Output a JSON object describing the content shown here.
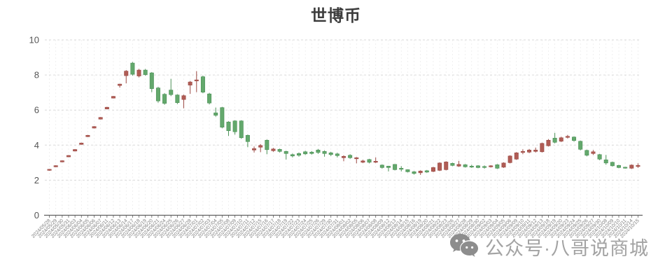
{
  "title": "世博币",
  "watermark": {
    "icon": "wechat-icon",
    "text": "公众号·八哥说商城"
  },
  "chart_data": {
    "type": "candlestick",
    "title": "世博币",
    "xlabel": "",
    "ylabel": "",
    "ylim": [
      0,
      10
    ],
    "yticks": [
      0,
      2,
      4,
      6,
      8,
      10
    ],
    "grid": true,
    "legend": false,
    "x_tick_label_rotation": -45,
    "colors": {
      "up": "#b05c55",
      "up_stroke": "#9c4b45",
      "down": "#63a86c",
      "down_stroke": "#4c9157",
      "axis": "#616161",
      "gridline": "#dadada",
      "tick_label": "#7d7d7d"
    },
    "dates": [
      "2024/05/28",
      "2024/05/29",
      "2024/05/30",
      "2024/05/31",
      "2024/06/03",
      "2024/06/04",
      "2024/06/05",
      "2024/06/06",
      "2024/06/07",
      "2024/06/11",
      "2024/06/12",
      "2024/06/13",
      "2024/06/14",
      "2024/06/17",
      "2024/06/18",
      "2024/06/19",
      "2024/06/20",
      "2024/06/21",
      "2024/06/24",
      "2024/06/25",
      "2024/06/26",
      "2024/06/27",
      "2024/06/28",
      "2024/07/01",
      "2024/07/02",
      "2024/07/03",
      "2024/07/04",
      "2024/07/05",
      "2024/07/08",
      "2024/07/09",
      "2024/07/10",
      "2024/07/11",
      "2024/07/12",
      "2024/07/15",
      "2024/07/16",
      "2024/07/17",
      "2024/07/18",
      "2024/07/19",
      "2024/07/22",
      "2024/07/23",
      "2024/07/24",
      "2024/07/25",
      "2024/07/26",
      "2024/07/29",
      "2024/07/30",
      "2024/07/31",
      "2024/08/01",
      "2024/08/02",
      "2024/08/05",
      "2024/08/06",
      "2024/08/07",
      "2024/08/08",
      "2024/08/09",
      "2024/08/12",
      "2024/08/13",
      "2024/08/14",
      "2024/08/15",
      "2024/08/16",
      "2024/08/19",
      "2024/08/20",
      "2024/08/21",
      "2024/08/22",
      "2024/08/23",
      "2024/08/26",
      "2024/08/27",
      "2024/08/28",
      "2024/08/29",
      "2024/08/30",
      "2024/09/02",
      "2024/09/03",
      "2024/09/04",
      "2024/09/05",
      "2024/09/06",
      "2024/09/09",
      "2024/09/10",
      "2024/09/11",
      "2024/09/12",
      "2024/09/13",
      "2024/09/18",
      "2024/09/19",
      "2024/09/20",
      "2024/09/23",
      "2024/09/24",
      "2024/09/25",
      "2024/09/26",
      "2024/09/27",
      "2024/09/30",
      "2024/10/08",
      "2024/10/09",
      "2024/10/10",
      "2024/10/11",
      "2024/10/14",
      "2024/10/15"
    ],
    "candles_format": [
      "open",
      "close",
      "low",
      "high"
    ],
    "candles": [
      [
        2.56,
        2.62,
        2.54,
        2.64
      ],
      [
        2.76,
        2.83,
        2.74,
        2.85
      ],
      [
        3.04,
        3.11,
        3.02,
        3.13
      ],
      [
        3.33,
        3.41,
        3.31,
        3.43
      ],
      [
        3.66,
        3.75,
        3.64,
        3.77
      ],
      [
        4.04,
        4.12,
        4.02,
        4.14
      ],
      [
        4.48,
        4.56,
        4.46,
        4.58
      ],
      [
        4.97,
        5.06,
        4.95,
        5.08
      ],
      [
        5.48,
        5.58,
        5.46,
        5.6
      ],
      [
        6.06,
        6.16,
        6.04,
        6.18
      ],
      [
        6.68,
        6.78,
        6.66,
        6.8
      ],
      [
        7.4,
        7.48,
        7.28,
        7.5
      ],
      [
        7.96,
        8.22,
        7.52,
        8.28
      ],
      [
        8.68,
        8.04,
        7.96,
        8.74
      ],
      [
        7.94,
        8.28,
        7.86,
        8.34
      ],
      [
        8.28,
        8.02,
        7.96,
        8.34
      ],
      [
        8.12,
        7.22,
        7.02,
        8.16
      ],
      [
        7.26,
        6.52,
        6.42,
        7.32
      ],
      [
        6.9,
        6.38,
        6.3,
        6.96
      ],
      [
        7.14,
        6.88,
        6.8,
        7.78
      ],
      [
        6.86,
        6.42,
        6.34,
        6.9
      ],
      [
        6.6,
        6.82,
        6.1,
        6.88
      ],
      [
        7.42,
        7.6,
        6.92,
        7.66
      ],
      [
        7.66,
        7.72,
        7.02,
        8.22
      ],
      [
        7.9,
        7.02,
        6.96,
        7.96
      ],
      [
        6.92,
        6.4,
        6.32,
        6.98
      ],
      [
        5.84,
        5.7,
        5.62,
        6.14
      ],
      [
        6.14,
        5.02,
        4.96,
        6.18
      ],
      [
        5.32,
        4.82,
        4.52,
        5.36
      ],
      [
        5.38,
        4.76,
        4.6,
        5.42
      ],
      [
        5.38,
        4.42,
        4.36,
        5.42
      ],
      [
        4.56,
        4.2,
        3.88,
        4.6
      ],
      [
        3.72,
        3.8,
        3.58,
        3.92
      ],
      [
        3.88,
        3.98,
        3.6,
        4.06
      ],
      [
        4.28,
        3.74,
        3.48,
        4.32
      ],
      [
        3.68,
        3.78,
        3.62,
        3.84
      ],
      [
        3.76,
        3.64,
        3.58,
        3.8
      ],
      [
        3.64,
        3.52,
        3.18,
        3.68
      ],
      [
        3.46,
        3.38,
        3.3,
        3.52
      ],
      [
        3.52,
        3.42,
        3.34,
        3.58
      ],
      [
        3.62,
        3.5,
        3.44,
        3.68
      ],
      [
        3.6,
        3.52,
        3.46,
        3.66
      ],
      [
        3.72,
        3.58,
        3.5,
        3.78
      ],
      [
        3.64,
        3.52,
        3.34,
        3.7
      ],
      [
        3.56,
        3.46,
        3.38,
        3.62
      ],
      [
        3.5,
        3.4,
        3.3,
        3.56
      ],
      [
        3.28,
        3.36,
        3.08,
        3.42
      ],
      [
        3.42,
        3.28,
        3.22,
        3.48
      ],
      [
        3.22,
        3.28,
        2.96,
        3.32
      ],
      [
        3.02,
        3.1,
        2.98,
        3.16
      ],
      [
        3.18,
        3.02,
        2.96,
        3.22
      ],
      [
        3.02,
        3.08,
        2.98,
        3.3
      ],
      [
        2.86,
        2.72,
        2.66,
        2.9
      ],
      [
        2.8,
        2.72,
        2.5,
        2.82
      ],
      [
        2.9,
        2.6,
        2.56,
        2.92
      ],
      [
        2.68,
        2.62,
        2.5,
        2.8
      ],
      [
        2.6,
        2.48,
        2.44,
        2.62
      ],
      [
        2.48,
        2.38,
        2.32,
        2.52
      ],
      [
        2.42,
        2.52,
        2.3,
        2.56
      ],
      [
        2.54,
        2.46,
        2.42,
        2.58
      ],
      [
        2.5,
        2.72,
        2.46,
        2.76
      ],
      [
        2.56,
        2.98,
        2.52,
        3.02
      ],
      [
        2.6,
        3.04,
        2.56,
        3.08
      ],
      [
        2.96,
        2.84,
        2.8,
        3.0
      ],
      [
        2.8,
        2.9,
        2.76,
        3.1
      ],
      [
        2.88,
        2.76,
        2.72,
        2.92
      ],
      [
        2.8,
        2.76,
        2.7,
        2.88
      ],
      [
        2.82,
        2.72,
        2.68,
        2.86
      ],
      [
        2.78,
        2.74,
        2.66,
        2.84
      ],
      [
        2.76,
        2.82,
        2.72,
        2.86
      ],
      [
        2.88,
        2.68,
        2.64,
        2.92
      ],
      [
        2.74,
        2.98,
        2.7,
        3.02
      ],
      [
        3.0,
        3.38,
        2.96,
        3.42
      ],
      [
        3.2,
        3.56,
        3.16,
        3.6
      ],
      [
        3.58,
        3.64,
        3.48,
        3.76
      ],
      [
        3.6,
        3.72,
        3.54,
        3.78
      ],
      [
        3.64,
        3.72,
        3.58,
        3.86
      ],
      [
        3.62,
        4.1,
        3.58,
        4.14
      ],
      [
        3.96,
        4.28,
        3.92,
        4.34
      ],
      [
        4.4,
        4.16,
        4.1,
        4.7
      ],
      [
        4.22,
        4.42,
        4.18,
        4.48
      ],
      [
        4.44,
        4.5,
        4.38,
        4.58
      ],
      [
        4.46,
        4.26,
        4.2,
        4.5
      ],
      [
        4.22,
        3.76,
        3.7,
        4.26
      ],
      [
        3.7,
        3.42,
        3.36,
        3.74
      ],
      [
        3.52,
        3.62,
        3.44,
        3.72
      ],
      [
        3.46,
        3.2,
        3.14,
        3.5
      ],
      [
        3.16,
        2.98,
        2.88,
        3.44
      ],
      [
        3.02,
        2.82,
        2.78,
        3.06
      ],
      [
        2.84,
        2.72,
        2.68,
        2.88
      ],
      [
        2.74,
        2.7,
        2.66,
        2.76
      ],
      [
        2.68,
        2.86,
        2.64,
        2.9
      ],
      [
        2.78,
        2.84,
        2.7,
        2.96
      ]
    ]
  }
}
